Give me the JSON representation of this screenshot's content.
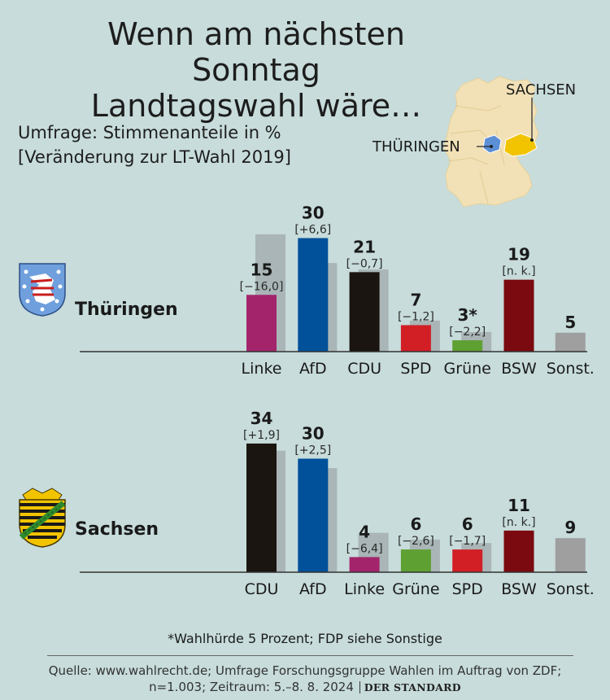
{
  "title_line1": "Wenn am nächsten Sonntag",
  "title_line2": "Landtagswahl wäre…",
  "subtitle_line1": "Umfrage: Stimmenanteile in %",
  "subtitle_line2": "[Veränderung zur LT-Wahl 2019]",
  "map_labels": {
    "sachsen": "SACHSEN",
    "thueringen": "THÜRINGEN"
  },
  "colors": {
    "background": "#c7dcdb",
    "ghost_bar": "#a9b5b6",
    "map_land": "#f2e1b6",
    "map_thueringen": "#5b8fd6",
    "map_sachsen": "#f2c400"
  },
  "chart_data": [
    {
      "type": "bar",
      "state": "Thüringen",
      "categories": [
        "Linke",
        "AfD",
        "CDU",
        "SPD",
        "Grüne",
        "BSW",
        "Sonst."
      ],
      "values": [
        15,
        30,
        21,
        7,
        3,
        19,
        5
      ],
      "value_labels": [
        "15",
        "30",
        "21",
        "7",
        "3*",
        "19",
        "5"
      ],
      "changes": [
        "[−16,0]",
        "[+6,6]",
        "[−0,7]",
        "[−1,2]",
        "[−2,2]",
        "[n. k.]",
        ""
      ],
      "previous_2019": [
        31,
        23.4,
        21.7,
        8.2,
        5.2,
        null,
        null
      ],
      "bar_colors": [
        "#a3246b",
        "#00509a",
        "#1a1510",
        "#d21f26",
        "#5fa032",
        "#7a0a10",
        "#9f9f9f"
      ],
      "ylim": [
        0,
        34
      ],
      "crest_icon": "thueringen-crest-icon"
    },
    {
      "type": "bar",
      "state": "Sachsen",
      "categories": [
        "CDU",
        "AfD",
        "Linke",
        "Grüne",
        "SPD",
        "BSW",
        "Sonst."
      ],
      "values": [
        34,
        30,
        4,
        6,
        6,
        11,
        9
      ],
      "value_labels": [
        "34",
        "30",
        "4",
        "6",
        "6",
        "11",
        "9"
      ],
      "changes": [
        "[+1,9]",
        "[+2,5]",
        "[−6,4]",
        "[−2,6]",
        "[−1,7]",
        "[n. k.]",
        ""
      ],
      "previous_2019": [
        32.1,
        27.5,
        10.4,
        8.6,
        7.7,
        null,
        null
      ],
      "bar_colors": [
        "#1a1510",
        "#00509a",
        "#a3246b",
        "#5fa032",
        "#d21f26",
        "#7a0a10",
        "#9f9f9f"
      ],
      "ylim": [
        0,
        34
      ],
      "crest_icon": "sachsen-crest-icon"
    }
  ],
  "footnote": "*Wahlhürde 5 Prozent; FDP siehe Sonstige",
  "source_line1": "Quelle: www.wahlrecht.de; Umfrage Forschungsgruppe Wahlen im Auftrag von ZDF;",
  "source_line2": "n=1.003; Zeitraum: 5.–8. 8. 2024",
  "brand": "DER STANDARD"
}
